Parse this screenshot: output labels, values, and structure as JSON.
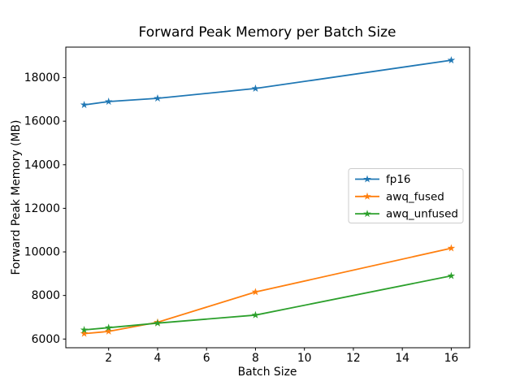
{
  "figure": {
    "background": "#ffffff"
  },
  "chart_data": {
    "type": "line",
    "title": "Forward Peak Memory per Batch Size",
    "xlabel": "Batch Size",
    "ylabel": "Forward Peak Memory (MB)",
    "x": [
      1,
      2,
      4,
      8,
      16
    ],
    "series": [
      {
        "name": "fp16",
        "color": "#1f77b4",
        "marker": "star",
        "values": [
          16750,
          16900,
          17050,
          17500,
          18800
        ]
      },
      {
        "name": "awq_fused",
        "color": "#ff7f0e",
        "marker": "star",
        "values": [
          6250,
          6350,
          6770,
          8160,
          10170
        ]
      },
      {
        "name": "awq_unfused",
        "color": "#2ca02c",
        "marker": "star",
        "values": [
          6420,
          6520,
          6730,
          7100,
          8900
        ]
      }
    ],
    "xticks": [
      2,
      4,
      6,
      8,
      10,
      12,
      14,
      16
    ],
    "yticks": [
      6000,
      8000,
      10000,
      12000,
      14000,
      16000,
      18000
    ],
    "xlim": [
      0.25,
      16.75
    ],
    "ylim": [
      5600,
      19400
    ],
    "grid": false,
    "legend": {
      "position": "center right",
      "entries": [
        "fp16",
        "awq_fused",
        "awq_unfused"
      ]
    },
    "axis_color": "#000000",
    "text_color": "#000000",
    "legend_border_color": "#cccccc"
  }
}
